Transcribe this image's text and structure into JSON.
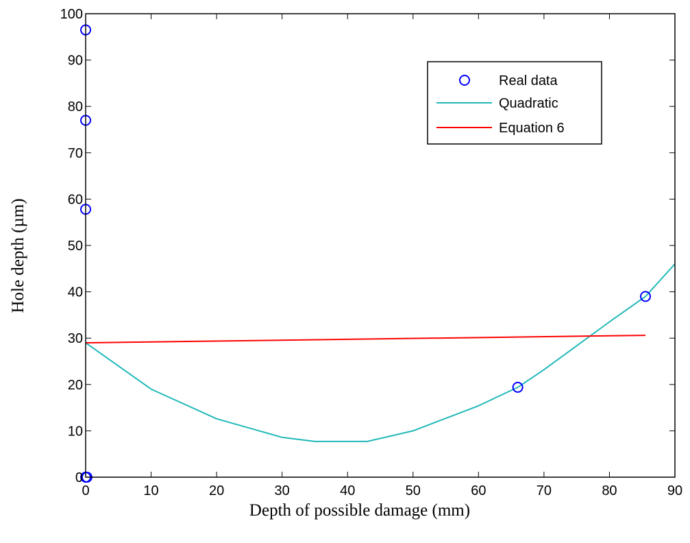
{
  "chart_data": {
    "type": "line",
    "title": "",
    "xlabel": "Depth of possible damage (mm)",
    "ylabel": "Hole depth (µm)",
    "xlim": [
      0,
      90
    ],
    "ylim": [
      0,
      100
    ],
    "xticks": [
      0,
      10,
      20,
      30,
      40,
      50,
      60,
      70,
      80,
      90
    ],
    "yticks": [
      0,
      10,
      20,
      30,
      40,
      50,
      60,
      70,
      80,
      90,
      100
    ],
    "xtick_labels": [
      "0",
      "10",
      "20",
      "30",
      "40",
      "50",
      "60",
      "70",
      "80",
      "90"
    ],
    "ytick_labels": [
      "0",
      "10",
      "20",
      "30",
      "40",
      "50",
      "60",
      "70",
      "80",
      "90",
      "100"
    ],
    "grid": false,
    "legend_position": "top-right",
    "series": [
      {
        "name": "Real data",
        "kind": "scatter",
        "marker": "circle",
        "color": "#0000ff",
        "x": [
          0,
          0,
          0,
          0,
          0.2,
          66,
          85.5
        ],
        "y": [
          96.5,
          77,
          57.8,
          0,
          0,
          19.4,
          39
        ]
      },
      {
        "name": "Quadratic",
        "kind": "line",
        "color": "#20b8b8",
        "x": [
          0,
          10,
          20,
          30,
          35,
          40,
          43,
          50,
          60,
          66,
          70,
          80,
          85.5,
          90
        ],
        "y": [
          29,
          19,
          12.6,
          8.6,
          7.7,
          7.7,
          7.7,
          10,
          15.4,
          19.4,
          23.2,
          33.5,
          39,
          46
        ]
      },
      {
        "name": "Equation 6",
        "kind": "line",
        "color": "#ff0000",
        "x": [
          0,
          85.5
        ],
        "y": [
          29,
          30.6
        ]
      }
    ]
  }
}
